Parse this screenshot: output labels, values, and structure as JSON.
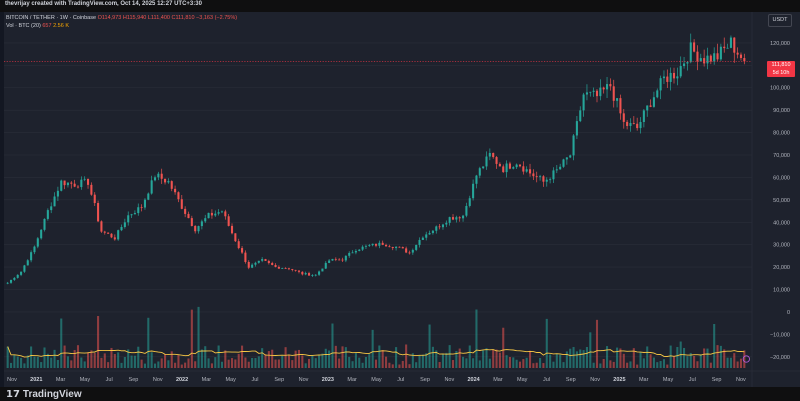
{
  "header": {
    "creator_text": "thevrijay created with TradingView.com, Oct 14, 2025 12:27 UTC+3:30"
  },
  "legend": {
    "symbol_text": "BITCOIN / TETHER · 1W · Coinbase",
    "ohlc_text": "O114,973 H115,940 L111,400 C111,810 −3,163 (−2.75%)",
    "volume_label": "Vol · BTC (20)",
    "volume_value": "657",
    "volume_ma": "2.56 K"
  },
  "price_scale": {
    "currency": "USDT",
    "last_price": "111,810",
    "countdown": "5d 10h",
    "ticks": [
      "120,000",
      "110,000",
      "100,000",
      "90,000",
      "80,000",
      "70,000",
      "60,000",
      "50,000",
      "40,000",
      "30,000",
      "20,000",
      "10,000",
      "0",
      "−10,000",
      "−20,000"
    ]
  },
  "time_axis": {
    "labels": [
      "Nov",
      "2021",
      "Mar",
      "May",
      "Jul",
      "Sep",
      "Nov",
      "2022",
      "Mar",
      "May",
      "Jul",
      "Sep",
      "Nov",
      "2023",
      "Mar",
      "May",
      "Jul",
      "Sep",
      "Nov",
      "2024",
      "Mar",
      "May",
      "Jul",
      "Sep",
      "Nov",
      "2025",
      "Mar",
      "May",
      "Jul",
      "Sep",
      "Nov"
    ],
    "bold_labels": [
      "2021",
      "2022",
      "2023",
      "2024",
      "2025"
    ]
  },
  "footer": {
    "brand": "TradingView",
    "brand_mark": "17"
  },
  "colors": {
    "up": "#26a69a",
    "down": "#ef5350",
    "volume_ma": "#f7c744",
    "background": "#1e222d",
    "price_line": "#f23645"
  },
  "chart_data": {
    "type": "candlestick",
    "symbol": "BTC/USDT",
    "interval": "1W",
    "last_price": 111810,
    "ylim": [
      -25000,
      132000
    ],
    "price_anchors": [
      {
        "month": 0,
        "price": 13000
      },
      {
        "month": 1,
        "price": 18000
      },
      {
        "month": 2,
        "price": 29000
      },
      {
        "month": 3,
        "price": 45000
      },
      {
        "month": 4,
        "price": 58000
      },
      {
        "month": 5,
        "price": 57000
      },
      {
        "month": 6,
        "price": 58000
      },
      {
        "month": 7,
        "price": 36000
      },
      {
        "month": 8,
        "price": 33000
      },
      {
        "month": 9,
        "price": 43000
      },
      {
        "month": 10,
        "price": 47000
      },
      {
        "month": 11,
        "price": 61000
      },
      {
        "month": 12,
        "price": 58000
      },
      {
        "month": 13,
        "price": 47000
      },
      {
        "month": 14,
        "price": 37000
      },
      {
        "month": 15,
        "price": 43000
      },
      {
        "month": 16,
        "price": 45000
      },
      {
        "month": 17,
        "price": 32000
      },
      {
        "month": 18,
        "price": 20000
      },
      {
        "month": 19,
        "price": 23000
      },
      {
        "month": 20,
        "price": 20000
      },
      {
        "month": 21,
        "price": 19500
      },
      {
        "month": 22,
        "price": 17000
      },
      {
        "month": 23,
        "price": 16500
      },
      {
        "month": 24,
        "price": 23000
      },
      {
        "month": 25,
        "price": 23500
      },
      {
        "month": 26,
        "price": 28000
      },
      {
        "month": 27,
        "price": 29500
      },
      {
        "month": 28,
        "price": 30500
      },
      {
        "month": 29,
        "price": 29000
      },
      {
        "month": 30,
        "price": 26500
      },
      {
        "month": 31,
        "price": 34000
      },
      {
        "month": 32,
        "price": 37500
      },
      {
        "month": 33,
        "price": 42000
      },
      {
        "month": 34,
        "price": 43000
      },
      {
        "month": 35,
        "price": 61000
      },
      {
        "month": 36,
        "price": 70000
      },
      {
        "month": 37,
        "price": 64000
      },
      {
        "month": 38,
        "price": 67000
      },
      {
        "month": 39,
        "price": 62000
      },
      {
        "month": 40,
        "price": 58000
      },
      {
        "month": 41,
        "price": 63000
      },
      {
        "month": 42,
        "price": 70000
      },
      {
        "month": 43,
        "price": 97000
      },
      {
        "month": 44,
        "price": 96000
      },
      {
        "month": 45,
        "price": 101000
      },
      {
        "month": 46,
        "price": 84000
      },
      {
        "month": 47,
        "price": 82000
      },
      {
        "month": 48,
        "price": 94000
      },
      {
        "month": 49,
        "price": 104000
      },
      {
        "month": 50,
        "price": 107000
      },
      {
        "month": 51,
        "price": 117000
      },
      {
        "month": 52,
        "price": 113000
      },
      {
        "month": 53,
        "price": 114000
      },
      {
        "month": 54,
        "price": 120000
      },
      {
        "month": 55,
        "price": 111810
      }
    ],
    "volume_min": -25000,
    "volume_max": 14000
  }
}
